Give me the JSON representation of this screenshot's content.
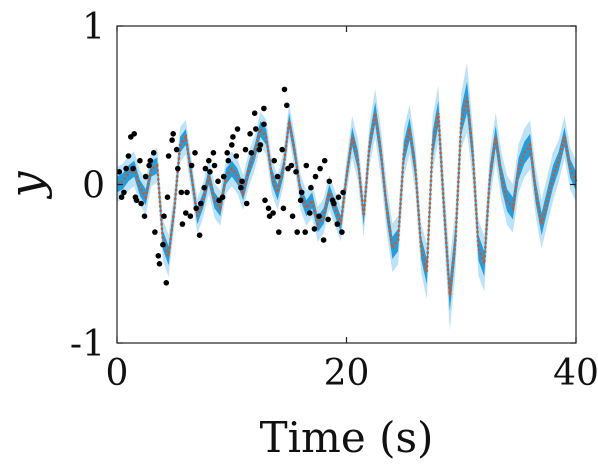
{
  "chart_data": {
    "type": "line",
    "title": "",
    "xlabel": "Time (s)",
    "ylabel": "y",
    "xlim": [
      0,
      40
    ],
    "ylim": [
      -1,
      1
    ],
    "x_ticks": [
      0,
      20,
      40
    ],
    "y_ticks": [
      -1,
      0,
      1
    ],
    "x_tick_labels": [
      "0",
      "20",
      "40"
    ],
    "y_tick_labels": [
      "-1",
      "0",
      "1"
    ],
    "grid": false,
    "legend": "none",
    "colors": {
      "observations": "#000000",
      "mean": "#d9531e",
      "band_inner": "#0b8fd6",
      "band_outer": "#9fd6f5",
      "axes": "#222222"
    },
    "series": [
      {
        "kind": "dotted-line",
        "x": [
          0,
          0.5,
          1,
          1.5,
          2,
          2.5,
          3,
          3.5,
          4,
          4.5,
          5,
          5.5,
          6,
          6.5,
          7,
          7.5,
          8,
          8.5,
          9,
          9.5,
          10,
          10.5,
          11,
          11.5,
          12,
          12.5,
          13,
          13.5,
          14,
          14.5,
          15,
          15.5,
          16,
          16.5,
          17,
          17.5,
          18,
          18.5,
          19,
          19.5,
          20,
          20.5,
          21,
          21.5,
          22,
          22.5,
          23,
          23.5,
          24,
          24.5,
          25,
          25.5,
          26,
          26.5,
          27,
          27.5,
          28,
          28.5,
          29,
          29.5,
          30,
          30.5,
          31,
          31.5,
          32,
          32.5,
          33,
          33.5,
          34,
          34.5,
          35,
          35.5,
          36,
          36.5,
          37,
          37.5,
          38,
          38.5,
          39,
          39.5,
          40
        ],
        "y": [
          0,
          0.02,
          0.07,
          0.1,
          -0.02,
          -0.08,
          0.1,
          0.12,
          -0.35,
          -0.45,
          -0.15,
          0.25,
          0.3,
          0.05,
          -0.2,
          -0.1,
          0.05,
          -0.1,
          -0.15,
          0.05,
          0.1,
          0.05,
          -0.05,
          0.1,
          0.2,
          0.35,
          0.3,
          0.05,
          -0.05,
          0.1,
          0.4,
          0.2,
          -0.05,
          -0.15,
          -0.1,
          -0.25,
          -0.2,
          -0.05,
          -0.15,
          -0.25,
          0.05,
          0.3,
          0.15,
          -0.2,
          0.25,
          0.45,
          0.2,
          -0.15,
          -0.4,
          -0.35,
          0.2,
          0.35,
          0.1,
          -0.4,
          -0.55,
          0.25,
          0.45,
          -0.15,
          -0.7,
          -0.35,
          0.4,
          0.55,
          0.2,
          -0.4,
          -0.5,
          0.05,
          0.3,
          0.05,
          -0.1,
          -0.15,
          0.1,
          0.2,
          0.25,
          -0.05,
          -0.25,
          -0.1,
          0.05,
          0.15,
          0.3,
          0.1,
          0.02
        ]
      },
      {
        "kind": "uncertainty-band",
        "std": [
          0.05,
          0.05,
          0.05,
          0.05,
          0.05,
          0.05,
          0.05,
          0.05,
          0.06,
          0.06,
          0.05,
          0.05,
          0.05,
          0.05,
          0.05,
          0.05,
          0.05,
          0.05,
          0.05,
          0.05,
          0.05,
          0.05,
          0.05,
          0.05,
          0.05,
          0.05,
          0.05,
          0.05,
          0.05,
          0.05,
          0.05,
          0.05,
          0.05,
          0.05,
          0.05,
          0.05,
          0.05,
          0.05,
          0.05,
          0.05,
          0.05,
          0.06,
          0.06,
          0.06,
          0.06,
          0.07,
          0.07,
          0.07,
          0.07,
          0.07,
          0.07,
          0.07,
          0.07,
          0.07,
          0.08,
          0.08,
          0.08,
          0.08,
          0.1,
          0.09,
          0.08,
          0.1,
          0.08,
          0.08,
          0.08,
          0.07,
          0.07,
          0.07,
          0.07,
          0.07,
          0.07,
          0.07,
          0.07,
          0.07,
          0.07,
          0.07,
          0.07,
          0.06,
          0.06,
          0.06,
          0.06
        ]
      },
      {
        "kind": "scatter",
        "x": [
          0.2,
          0.6,
          1.0,
          1.4,
          1.7,
          2.1,
          2.5,
          2.9,
          3.3,
          3.7,
          4.1,
          4.5,
          4.9,
          5.3,
          5.7,
          6.1,
          6.5,
          6.9,
          7.3,
          7.7,
          8.1,
          8.5,
          8.9,
          9.3,
          9.7,
          10.1,
          10.5,
          10.9,
          11.3,
          11.7,
          12.1,
          12.5,
          12.9,
          13.3,
          13.7,
          14.1,
          14.5,
          14.9,
          15.3,
          15.7,
          16.1,
          16.5,
          16.9,
          17.3,
          17.7,
          18.1,
          18.5,
          18.9,
          19.3,
          19.7,
          0.4,
          0.8,
          1.2,
          1.6,
          2.0,
          2.4,
          2.8,
          3.2,
          3.6,
          4.0,
          4.4,
          4.8,
          5.2,
          5.6,
          6.0,
          6.4,
          6.8,
          7.2,
          7.6,
          8.0,
          8.4,
          8.8,
          9.2,
          9.6,
          10.0,
          10.4,
          10.8,
          11.2,
          11.6,
          12.0,
          12.4,
          12.8,
          13.2,
          13.6,
          14.0,
          14.4,
          14.8,
          15.2,
          15.6,
          16.0,
          16.4,
          16.8,
          17.2,
          17.6,
          18.0,
          18.4,
          18.8,
          19.2,
          19.6,
          1.5,
          4.3,
          12.8,
          14.6
        ],
        "y": [
          0.08,
          -0.05,
          0.18,
          0.1,
          -0.1,
          -0.12,
          0.05,
          0.15,
          -0.3,
          -0.5,
          -0.2,
          0.18,
          0.32,
          0.1,
          -0.25,
          -0.05,
          0.12,
          -0.15,
          -0.12,
          0.1,
          0.08,
          0.12,
          -0.1,
          0.05,
          0.15,
          0.3,
          0.35,
          0.02,
          -0.12,
          0.2,
          0.35,
          0.25,
          -0.1,
          -0.2,
          0.15,
          -0.3,
          -0.15,
          0.1,
          -0.2,
          -0.3,
          -0.05,
          0.12,
          -0.02,
          0.05,
          0.1,
          0.15,
          0.02,
          -0.12,
          -0.08,
          -0.05,
          -0.08,
          0.1,
          0.3,
          -0.08,
          0.15,
          -0.2,
          0.12,
          0.2,
          -0.45,
          -0.38,
          -0.08,
          0.28,
          0.22,
          -0.05,
          -0.18,
          -0.2,
          0.2,
          -0.32,
          -0.02,
          0.15,
          0.2,
          0.02,
          -0.08,
          0.2,
          0.25,
          0.18,
          -0.02,
          0.22,
          0.32,
          0.45,
          0.22,
          0.38,
          -0.15,
          -0.18,
          0.05,
          0.22,
          0.5,
          0.12,
          0.08,
          -0.1,
          -0.3,
          -0.18,
          -0.28,
          -0.2,
          -0.35,
          -0.22,
          -0.1,
          -0.25,
          -0.3,
          0.32,
          -0.62,
          0.48,
          0.6
        ]
      }
    ]
  }
}
